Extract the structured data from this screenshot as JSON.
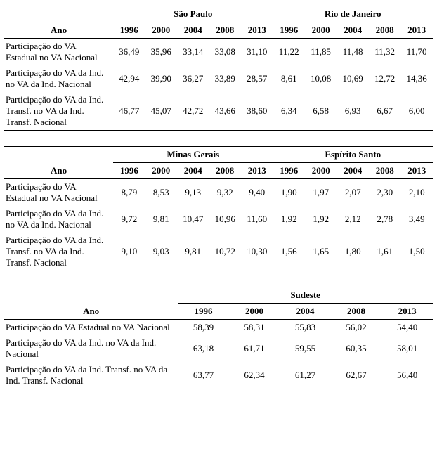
{
  "labels": {
    "ano": "Ano"
  },
  "indicators": [
    "Participação do VA Estadual no VA Nacional",
    "Participação do VA da Ind. no VA da Ind. Nacional",
    "Participação do VA da Ind. Transf. no VA da Ind. Transf. Nacional"
  ],
  "years": [
    "1996",
    "2000",
    "2004",
    "2008",
    "2013"
  ],
  "blocks": [
    {
      "regions": [
        {
          "name": "São Paulo",
          "rows": [
            [
              "36,49",
              "35,96",
              "33,14",
              "33,08",
              "31,10"
            ],
            [
              "42,94",
              "39,90",
              "36,27",
              "33,89",
              "28,57"
            ],
            [
              "46,77",
              "45,07",
              "42,72",
              "43,66",
              "38,60"
            ]
          ]
        },
        {
          "name": "Rio de Janeiro",
          "rows": [
            [
              "11,22",
              "11,85",
              "11,48",
              "11,32",
              "11,70"
            ],
            [
              "8,61",
              "10,08",
              "10,69",
              "12,72",
              "14,36"
            ],
            [
              "6,34",
              "6,58",
              "6,93",
              "6,67",
              "6,00"
            ]
          ]
        }
      ]
    },
    {
      "regions": [
        {
          "name": "Minas Gerais",
          "rows": [
            [
              "8,79",
              "8,53",
              "9,13",
              "9,32",
              "9,40"
            ],
            [
              "9,72",
              "9,81",
              "10,47",
              "10,96",
              "11,60"
            ],
            [
              "9,10",
              "9,03",
              "9,81",
              "10,72",
              "10,30"
            ]
          ]
        },
        {
          "name": "Espírito Santo",
          "rows": [
            [
              "1,90",
              "1,97",
              "2,07",
              "2,30",
              "2,10"
            ],
            [
              "1,92",
              "1,92",
              "2,12",
              "2,78",
              "3,49"
            ],
            [
              "1,56",
              "1,65",
              "1,80",
              "1,61",
              "1,50"
            ]
          ]
        }
      ]
    },
    {
      "regions": [
        {
          "name": "Sudeste",
          "rows": [
            [
              "58,39",
              "58,31",
              "55,83",
              "56,02",
              "54,40"
            ],
            [
              "63,18",
              "61,71",
              "59,55",
              "60,35",
              "58,01"
            ],
            [
              "63,77",
              "62,34",
              "61,27",
              "62,67",
              "56,40"
            ]
          ]
        }
      ]
    }
  ]
}
